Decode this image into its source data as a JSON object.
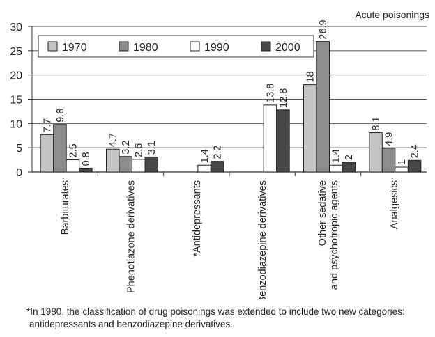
{
  "chart_data": {
    "type": "bar",
    "title": "Acute poisonings",
    "categories": [
      "Barbiturates",
      "Phenotiazone derivatives",
      "*Antidepressants",
      "*Benzodiazepine derivatives",
      "Other sedative\nand psychotropic agents",
      "Analgesics"
    ],
    "series": [
      {
        "name": "1970",
        "color": "#c4c4c4",
        "values": [
          7.7,
          4.7,
          null,
          null,
          18,
          8.1
        ]
      },
      {
        "name": "1980",
        "color": "#8c8c8c",
        "values": [
          9.8,
          3.2,
          null,
          null,
          26.9,
          4.9
        ]
      },
      {
        "name": "1990",
        "color": "#ffffff",
        "values": [
          2.5,
          2.6,
          1.4,
          13.8,
          1.4,
          1
        ]
      },
      {
        "name": "2000",
        "color": "#474747",
        "values": [
          0.8,
          3.1,
          2.2,
          12.8,
          2,
          2.4
        ]
      }
    ],
    "ylim": [
      0,
      30
    ],
    "yticks": [
      0,
      5,
      10,
      15,
      20,
      25,
      30
    ],
    "grid": true,
    "legend": "top-left"
  },
  "footnote": {
    "line1": "*In 1980, the classification of drug poisonings was extended to include two new categories:",
    "line2": "antidepressants and benzodiazepine derivatives."
  }
}
